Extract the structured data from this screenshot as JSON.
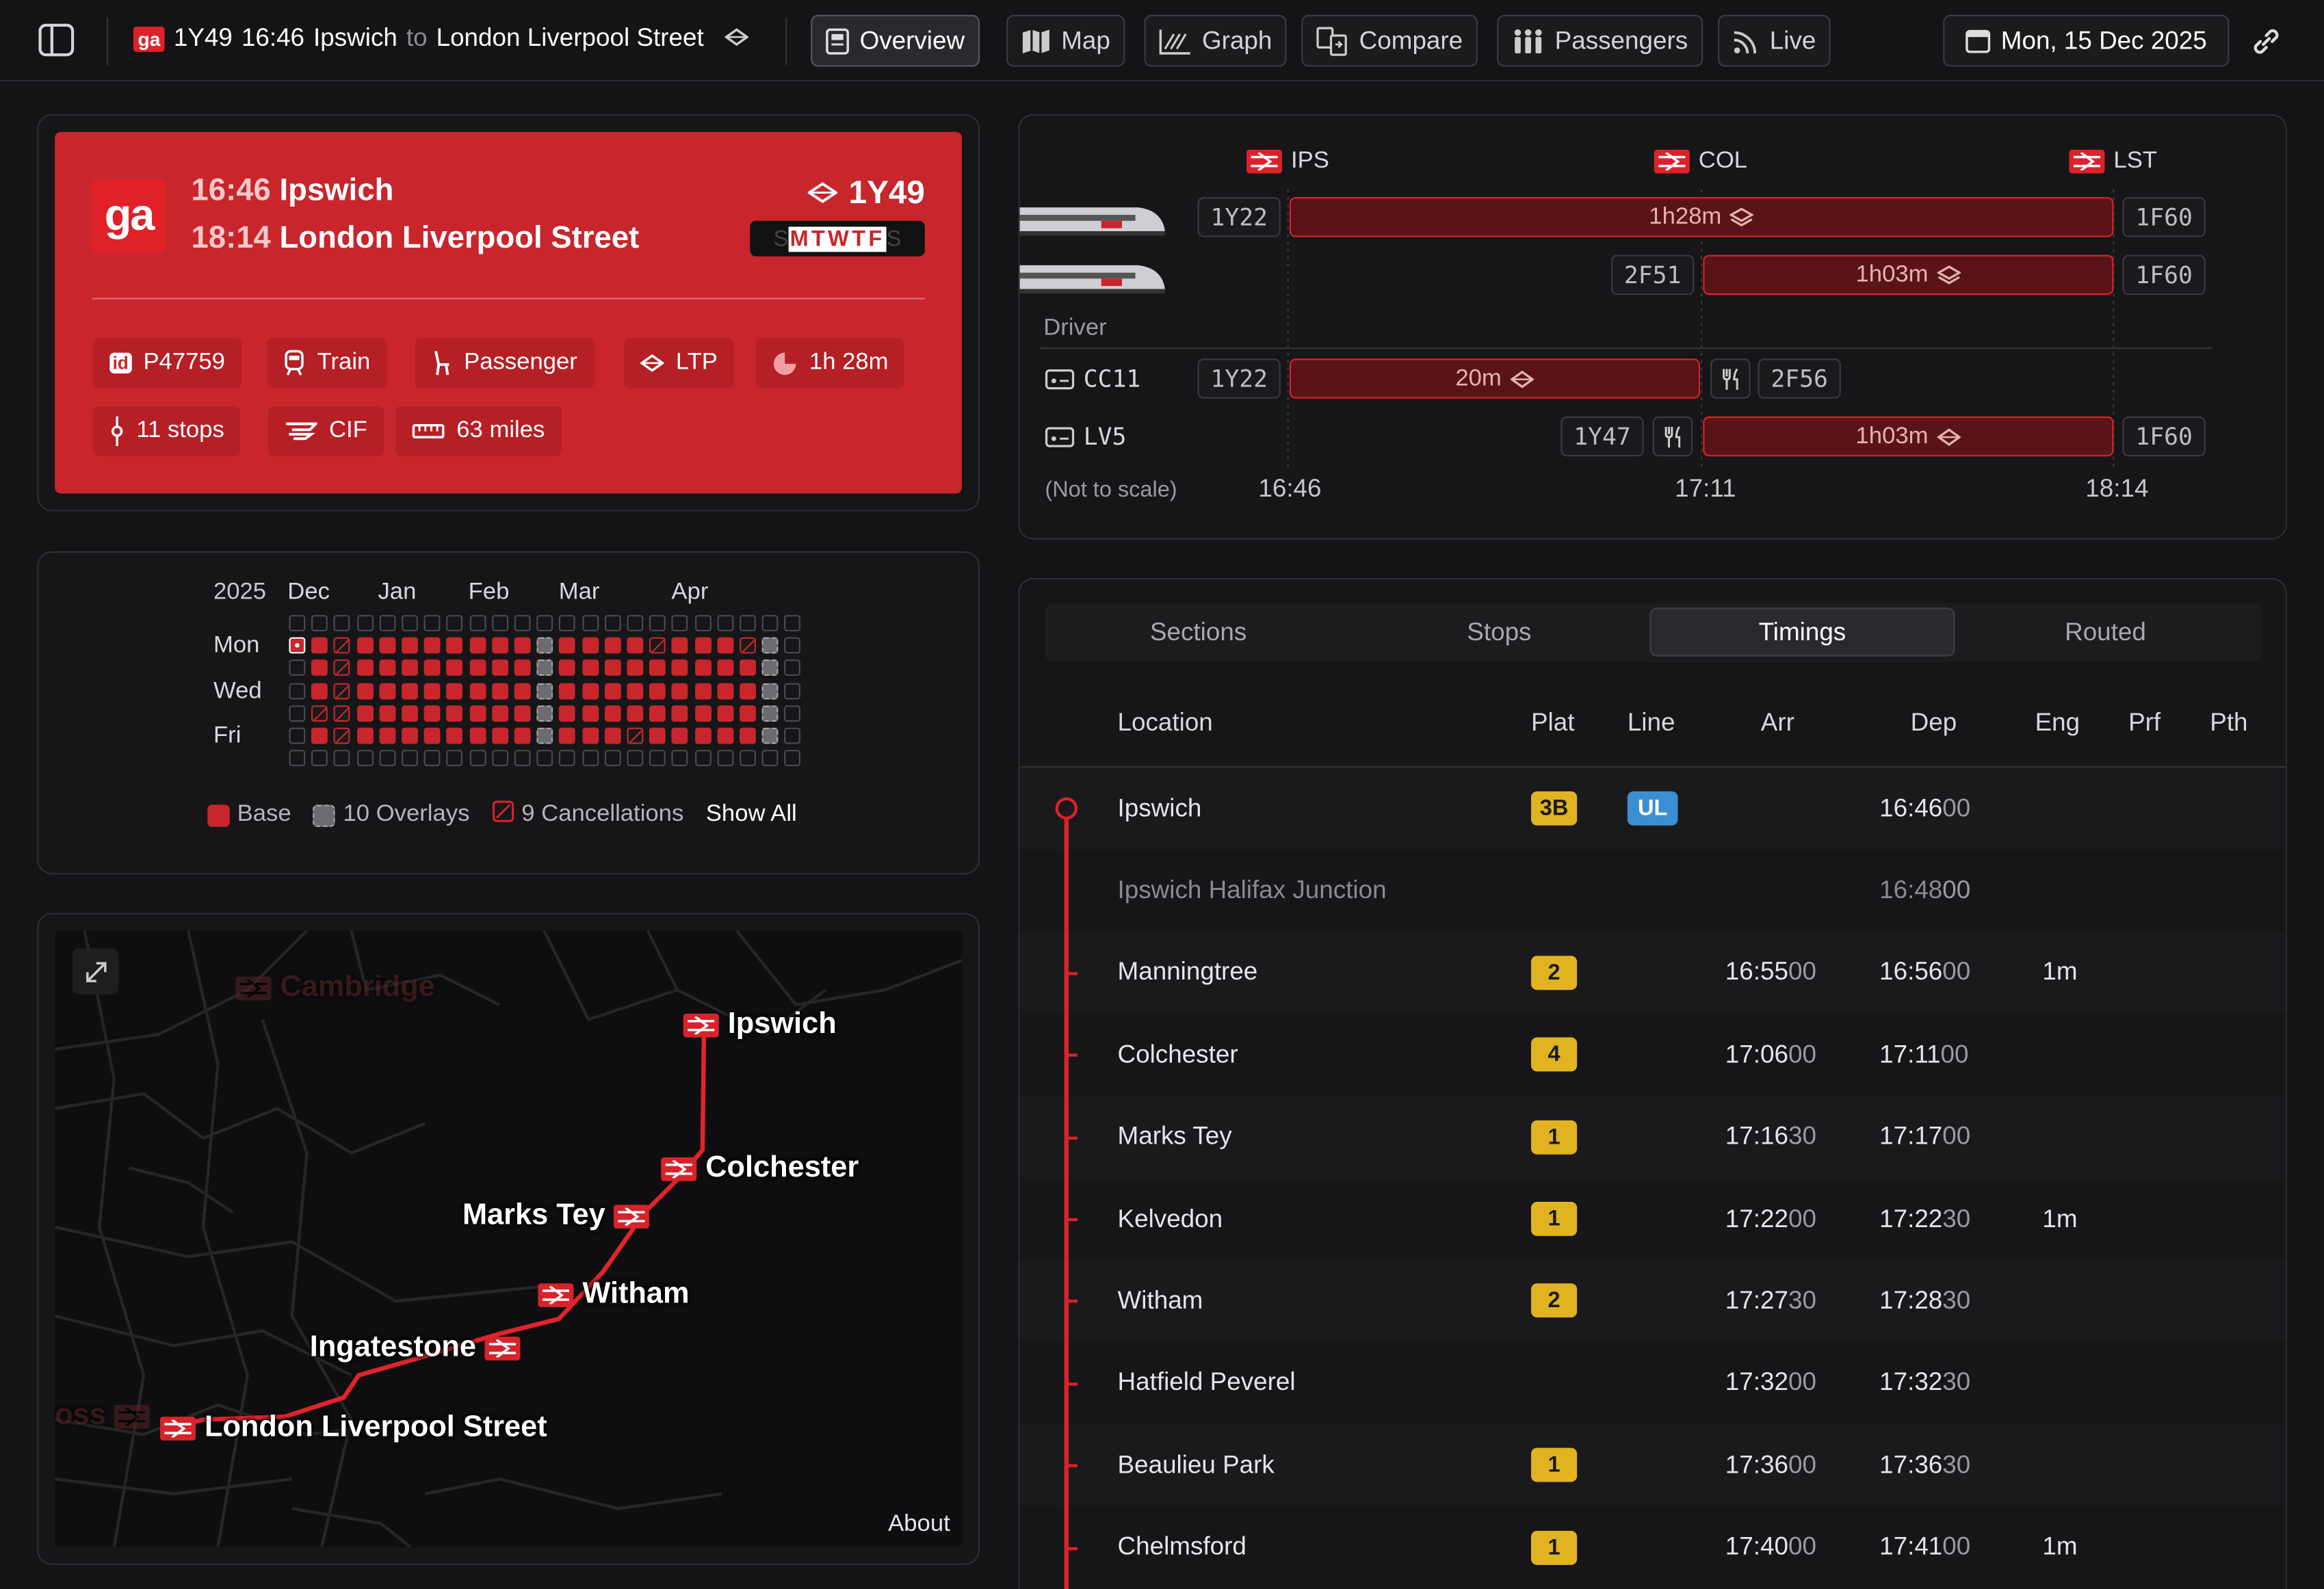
{
  "topbar": {
    "headcode": "1Y49",
    "time": "16:46",
    "origin": "Ipswich",
    "to": "to",
    "destination": "London Liverpool Street",
    "tabs": [
      "Overview",
      "Map",
      "Graph",
      "Compare",
      "Passengers",
      "Live"
    ],
    "active_tab": "Overview",
    "date": "Mon, 15 Dec 2025"
  },
  "hero": {
    "dep_time": "16:46",
    "dep_station": "Ipswich",
    "arr_time": "18:14",
    "arr_station": "London Liverpool Street",
    "headcode": "1Y49",
    "days_pre": "S",
    "days_on": "MTWTF",
    "days_post": "S",
    "chips": {
      "uid": "P47759",
      "mode": "Train",
      "category": "Passenger",
      "source": "LTP",
      "duration": "1h 28m",
      "stops": "11 stops",
      "format": "CIF",
      "distance": "63 miles"
    },
    "logo": "ga"
  },
  "calendar": {
    "year": "2025",
    "months": [
      "Dec",
      "Jan",
      "Feb",
      "Mar",
      "Apr"
    ],
    "days": [
      "Mon",
      "Wed",
      "Fri"
    ],
    "legend": {
      "base": "Base",
      "overlays": "10 Overlays",
      "cancellations": "9 Cancellations",
      "show_all": "Show All"
    }
  },
  "map": {
    "stations": [
      "Ipswich",
      "Colchester",
      "Marks Tey",
      "Witham",
      "Ingatestone",
      "London Liverpool Street"
    ],
    "faded": [
      "Cambridge",
      "oss"
    ],
    "about": "About"
  },
  "schedule": {
    "stations": [
      "IPS",
      "COL",
      "LST"
    ],
    "rows": {
      "r1": {
        "left": "1Y22",
        "bar": "1h28m",
        "right": "1F60"
      },
      "r2": {
        "left": "2F51",
        "bar": "1h03m",
        "right": "1F60"
      },
      "driver": "Driver",
      "d1": {
        "name": "CC11",
        "left": "1Y22",
        "bar": "20m",
        "right": "2F56"
      },
      "d2": {
        "name": "LV5",
        "left": "1Y47",
        "bar": "1h03m",
        "right": "1F60"
      }
    },
    "note": "(Not to scale)",
    "times": [
      "16:46",
      "17:11",
      "18:14"
    ]
  },
  "timings": {
    "tabs": [
      "Sections",
      "Stops",
      "Timings",
      "Routed"
    ],
    "active": "Timings",
    "headers": [
      "Location",
      "Plat",
      "Line",
      "Arr",
      "Dep",
      "Eng",
      "Prf",
      "Pth"
    ],
    "rows": [
      {
        "loc": "Ipswich",
        "plat": "3B",
        "line": "UL",
        "arr_h": "",
        "arr_s": "",
        "dep_h": "16:46",
        "dep_s": "00",
        "eng": ""
      },
      {
        "loc": "Ipswich Halifax Junction",
        "plat": "",
        "line": "",
        "arr_h": "",
        "arr_s": "",
        "dep_h": "16:48",
        "dep_s": "00",
        "eng": "",
        "pass": true
      },
      {
        "loc": "Manningtree",
        "plat": "2",
        "line": "",
        "arr_h": "16:55",
        "arr_s": "00",
        "dep_h": "16:56",
        "dep_s": "00",
        "eng": "1m"
      },
      {
        "loc": "Colchester",
        "plat": "4",
        "line": "",
        "arr_h": "17:06",
        "arr_s": "00",
        "dep_h": "17:11",
        "dep_s": "00",
        "eng": ""
      },
      {
        "loc": "Marks Tey",
        "plat": "1",
        "line": "",
        "arr_h": "17:16",
        "arr_s": "30",
        "dep_h": "17:17",
        "dep_s": "00",
        "eng": ""
      },
      {
        "loc": "Kelvedon",
        "plat": "1",
        "line": "",
        "arr_h": "17:22",
        "arr_s": "00",
        "dep_h": "17:22",
        "dep_s": "30",
        "eng": "1m"
      },
      {
        "loc": "Witham",
        "plat": "2",
        "line": "",
        "arr_h": "17:27",
        "arr_s": "30",
        "dep_h": "17:28",
        "dep_s": "30",
        "eng": ""
      },
      {
        "loc": "Hatfield Peverel",
        "plat": "",
        "line": "",
        "arr_h": "17:32",
        "arr_s": "00",
        "dep_h": "17:32",
        "dep_s": "30",
        "eng": ""
      },
      {
        "loc": "Beaulieu Park",
        "plat": "1",
        "line": "",
        "arr_h": "17:36",
        "arr_s": "00",
        "dep_h": "17:36",
        "dep_s": "30",
        "eng": ""
      },
      {
        "loc": "Chelmsford",
        "plat": "1",
        "line": "",
        "arr_h": "17:40",
        "arr_s": "00",
        "dep_h": "17:41",
        "dep_s": "00",
        "eng": "1m"
      }
    ]
  },
  "colors": {
    "brand": "#c8262c",
    "accent": "#d9222a",
    "platform": "#e1b321",
    "line": "#3a8fd2"
  }
}
